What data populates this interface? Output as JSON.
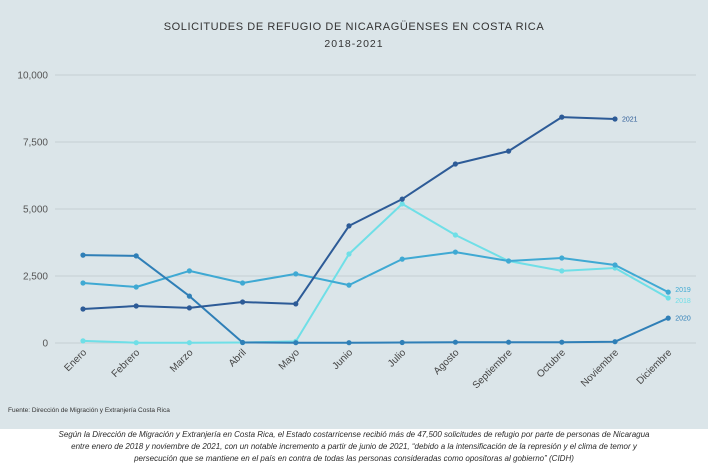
{
  "chart_data": {
    "type": "line",
    "title": "SOLICITUDES DE REFUGIO DE NICARAGÜENSES EN COSTA RICA",
    "subtitle": "2018-2021",
    "categories": [
      "Enero",
      "Febrero",
      "Marzo",
      "Abril",
      "Mayo",
      "Junio",
      "Julio",
      "Agosto",
      "Septiembre",
      "Octubre",
      "Noviembre",
      "Diciembre"
    ],
    "ylim": [
      0,
      10000
    ],
    "y_ticks": [
      0,
      2500,
      5000,
      7500,
      10000
    ],
    "y_tick_labels": [
      "0",
      "2,500",
      "5,000",
      "7,500",
      "10,000"
    ],
    "grid": true,
    "series": [
      {
        "name": "2018",
        "color": "#6fdfe7",
        "values": [
          80,
          10,
          10,
          20,
          60,
          3320,
          5190,
          4030,
          3060,
          2690,
          2800,
          1680
        ]
      },
      {
        "name": "2019",
        "color": "#3fa9d3",
        "values": [
          2240,
          2090,
          2690,
          2240,
          2580,
          2160,
          3130,
          3390,
          3060,
          3170,
          2910,
          1900
        ]
      },
      {
        "name": "2020",
        "color": "#2f7fb7",
        "values": [
          3280,
          3250,
          1750,
          20,
          10,
          10,
          20,
          30,
          30,
          30,
          50,
          930
        ]
      },
      {
        "name": "2021",
        "color": "#2d5b97",
        "values": [
          1270,
          1380,
          1310,
          1530,
          1460,
          4370,
          5370,
          6680,
          7160,
          8430,
          8360,
          null
        ]
      }
    ]
  },
  "source": "Fuente: Dirección de Migración y Extranjería Costa Rica",
  "caption": {
    "lines": [
      "Según la Dirección de Migración y Extranjería en Costa Rica, el Estado costarricense recibió más de 47,500 solicitudes de refugio por parte de personas de Nicaragua",
      "entre enero de 2018 y noviembre de 2021, con un notable incremento a partir de junio de 2021, “debido a la intensificación de la represión y el clima de temor y",
      "persecución que se mantiene en el país en contra de todas las personas consideradas como opositoras al gobierno” (CIDH)"
    ]
  }
}
